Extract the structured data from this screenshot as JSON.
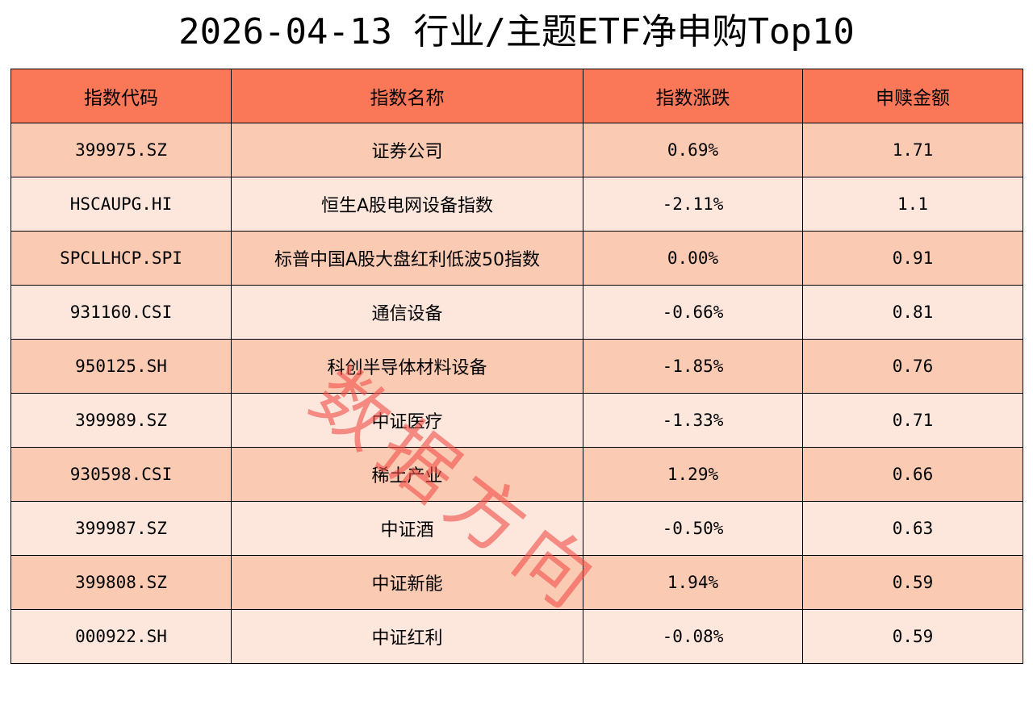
{
  "title": "2026-04-13 行业/主题ETF净申购Top10",
  "watermark": "数据方向",
  "colors": {
    "header_bg": "#fa7858",
    "row_odd": "#fbcab2",
    "row_even": "#fde6dc",
    "watermark": "#f0504b"
  },
  "chart_data": {
    "type": "table",
    "title": "2026-04-13 行业/主题ETF净申购Top10",
    "columns": [
      "指数代码",
      "指数名称",
      "指数涨跌",
      "申赎金额"
    ],
    "rows": [
      [
        "399975.SZ",
        "证券公司",
        "0.69%",
        "1.71"
      ],
      [
        "HSCAUPG.HI",
        "恒生A股电网设备指数",
        "-2.11%",
        "1.1"
      ],
      [
        "SPCLLHCP.SPI",
        "标普中国A股大盘红利低波50指数",
        "0.00%",
        "0.91"
      ],
      [
        "931160.CSI",
        "通信设备",
        "-0.66%",
        "0.81"
      ],
      [
        "950125.SH",
        "科创半导体材料设备",
        "-1.85%",
        "0.76"
      ],
      [
        "399989.SZ",
        "中证医疗",
        "-1.33%",
        "0.71"
      ],
      [
        "930598.CSI",
        "稀土产业",
        "1.29%",
        "0.66"
      ],
      [
        "399987.SZ",
        "中证酒",
        "-0.50%",
        "0.63"
      ],
      [
        "399808.SZ",
        "中证新能",
        "1.94%",
        "0.59"
      ],
      [
        "000922.SH",
        "中证红利",
        "-0.08%",
        "0.59"
      ]
    ]
  }
}
